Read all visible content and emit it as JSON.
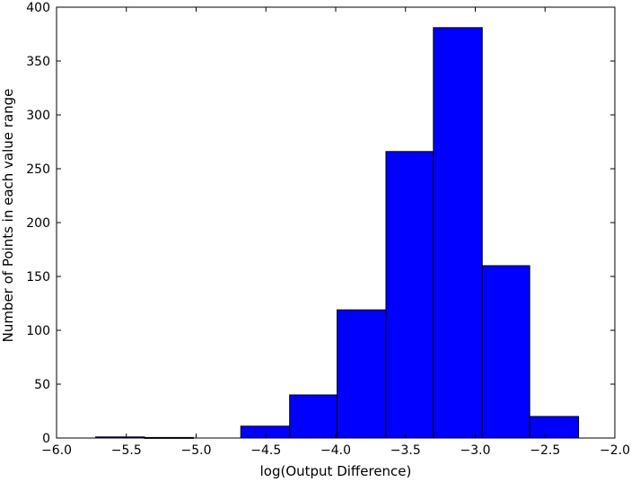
{
  "chart_data": {
    "type": "bar",
    "subtype": "histogram",
    "title": "",
    "xlabel": "log(Output Difference)",
    "ylabel": "Number of Points in each value range",
    "xlim": [
      -6.0,
      -2.0
    ],
    "ylim": [
      0,
      400
    ],
    "x_ticks": [
      "−6.0",
      "−5.5",
      "−5.0",
      "−4.5",
      "−4.0",
      "−3.5",
      "−3.0",
      "−2.5",
      "−2.0"
    ],
    "x_tick_values": [
      -6.0,
      -5.5,
      -5.0,
      -4.5,
      -4.0,
      -3.5,
      -3.0,
      -2.5,
      -2.0
    ],
    "y_ticks": [
      "0",
      "50",
      "100",
      "150",
      "200",
      "250",
      "300",
      "350",
      "400"
    ],
    "y_tick_values": [
      0,
      50,
      100,
      150,
      200,
      250,
      300,
      350,
      400
    ],
    "grid": false,
    "bar_color": "#0000ff",
    "edge_color": "#000000",
    "bins": [
      {
        "x0": -5.72,
        "x1": -5.37,
        "value": 1
      },
      {
        "x0": -5.37,
        "x1": -5.02,
        "value": 0.5
      },
      {
        "x0": -5.02,
        "x1": -4.68,
        "value": 0
      },
      {
        "x0": -4.68,
        "x1": -4.33,
        "value": 11
      },
      {
        "x0": -4.33,
        "x1": -3.99,
        "value": 40
      },
      {
        "x0": -3.99,
        "x1": -3.64,
        "value": 119
      },
      {
        "x0": -3.64,
        "x1": -3.3,
        "value": 266
      },
      {
        "x0": -3.3,
        "x1": -2.95,
        "value": 381
      },
      {
        "x0": -2.95,
        "x1": -2.61,
        "value": 160
      },
      {
        "x0": -2.61,
        "x1": -2.26,
        "value": 20
      }
    ]
  }
}
